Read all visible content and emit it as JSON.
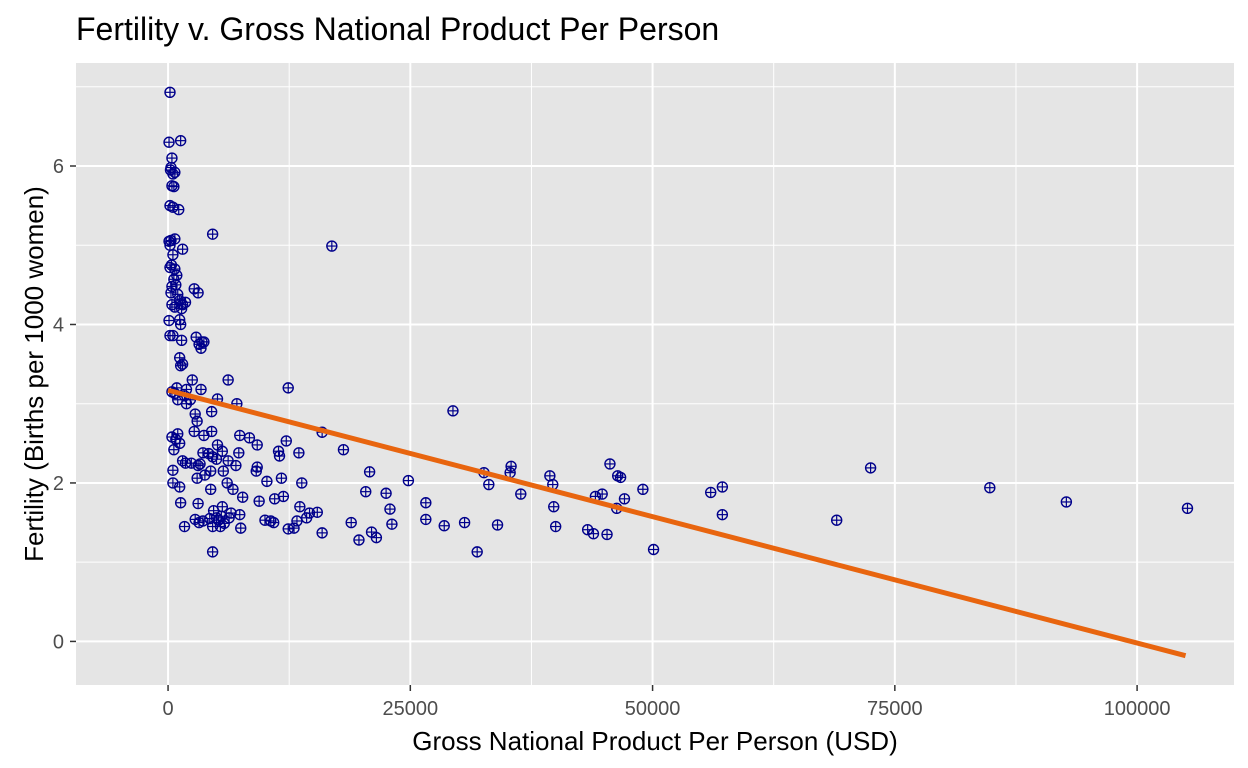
{
  "chart_data": {
    "type": "scatter",
    "title": "Fertility v. Gross National Product Per Person",
    "xlabel": "Gross National Product Per Person (USD)",
    "ylabel": "Fertility (Births per 1000 women)",
    "xlim": [
      -9500,
      110000
    ],
    "ylim": [
      -0.55,
      7.3
    ],
    "xticks": [
      0,
      25000,
      50000,
      75000,
      100000
    ],
    "xtick_labels": [
      "0",
      "25000",
      "50000",
      "75000",
      "100000"
    ],
    "yticks": [
      0,
      2,
      4,
      6
    ],
    "ytick_labels": [
      "0",
      "2",
      "4",
      "6"
    ],
    "grid": true,
    "legend": "none",
    "colors": {
      "panel": "#e5e5e5",
      "grid": "#ffffff",
      "points": "#00008b",
      "trend": "#e8650f"
    },
    "trend_line": {
      "x": [
        0,
        105000
      ],
      "y": [
        3.17,
        -0.18
      ]
    },
    "points": [
      [
        200,
        6.93
      ],
      [
        100,
        6.3
      ],
      [
        1300,
        6.32
      ],
      [
        400,
        6.1
      ],
      [
        300,
        5.98
      ],
      [
        250,
        5.95
      ],
      [
        500,
        5.9
      ],
      [
        700,
        5.92
      ],
      [
        400,
        5.75
      ],
      [
        600,
        5.74
      ],
      [
        200,
        5.5
      ],
      [
        500,
        5.48
      ],
      [
        1100,
        5.45
      ],
      [
        4600,
        5.14
      ],
      [
        300,
        5.06
      ],
      [
        100,
        5.05
      ],
      [
        700,
        5.08
      ],
      [
        200,
        5.0
      ],
      [
        1500,
        4.95
      ],
      [
        16900,
        4.99
      ],
      [
        500,
        4.88
      ],
      [
        350,
        4.75
      ],
      [
        200,
        4.72
      ],
      [
        700,
        4.7
      ],
      [
        900,
        4.62
      ],
      [
        600,
        4.57
      ],
      [
        400,
        4.48
      ],
      [
        800,
        4.5
      ],
      [
        300,
        4.4
      ],
      [
        1000,
        4.38
      ],
      [
        2700,
        4.45
      ],
      [
        3100,
        4.4
      ],
      [
        1200,
        4.3
      ],
      [
        1800,
        4.28
      ],
      [
        1500,
        4.25
      ],
      [
        1400,
        4.2
      ],
      [
        400,
        4.25
      ],
      [
        700,
        4.22
      ],
      [
        100,
        4.05
      ],
      [
        1200,
        4.06
      ],
      [
        1300,
        4.0
      ],
      [
        200,
        3.86
      ],
      [
        500,
        3.86
      ],
      [
        2900,
        3.84
      ],
      [
        3500,
        3.78
      ],
      [
        3200,
        3.75
      ],
      [
        3700,
        3.78
      ],
      [
        1400,
        3.8
      ],
      [
        3400,
        3.7
      ],
      [
        1200,
        3.58
      ],
      [
        1500,
        3.5
      ],
      [
        1300,
        3.48
      ],
      [
        2500,
        3.3
      ],
      [
        6200,
        3.3
      ],
      [
        12400,
        3.2
      ],
      [
        900,
        3.2
      ],
      [
        1900,
        3.18
      ],
      [
        3400,
        3.18
      ],
      [
        400,
        3.15
      ],
      [
        700,
        3.13
      ],
      [
        1000,
        3.05
      ],
      [
        1700,
        3.1
      ],
      [
        2300,
        3.05
      ],
      [
        5100,
        3.06
      ],
      [
        7100,
        3.0
      ],
      [
        1900,
        3.0
      ],
      [
        29400,
        2.91
      ],
      [
        4500,
        2.9
      ],
      [
        2800,
        2.87
      ],
      [
        3000,
        2.78
      ],
      [
        15900,
        2.64
      ],
      [
        2700,
        2.65
      ],
      [
        4500,
        2.65
      ],
      [
        400,
        2.58
      ],
      [
        1000,
        2.62
      ],
      [
        800,
        2.55
      ],
      [
        1200,
        2.5
      ],
      [
        3700,
        2.6
      ],
      [
        7400,
        2.6
      ],
      [
        8400,
        2.57
      ],
      [
        9200,
        2.48
      ],
      [
        12200,
        2.53
      ],
      [
        5100,
        2.48
      ],
      [
        18100,
        2.42
      ],
      [
        3600,
        2.38
      ],
      [
        600,
        2.42
      ],
      [
        4200,
        2.37
      ],
      [
        4600,
        2.33
      ],
      [
        5600,
        2.4
      ],
      [
        7300,
        2.38
      ],
      [
        11400,
        2.4
      ],
      [
        13500,
        2.38
      ],
      [
        11500,
        2.34
      ],
      [
        1500,
        2.28
      ],
      [
        1800,
        2.25
      ],
      [
        2400,
        2.25
      ],
      [
        3100,
        2.22
      ],
      [
        3300,
        2.24
      ],
      [
        5000,
        2.3
      ],
      [
        6200,
        2.28
      ],
      [
        7000,
        2.22
      ],
      [
        9200,
        2.2
      ],
      [
        4400,
        2.15
      ],
      [
        5700,
        2.15
      ],
      [
        500,
        2.16
      ],
      [
        9100,
        2.15
      ],
      [
        20800,
        2.14
      ],
      [
        32600,
        2.13
      ],
      [
        35400,
        2.21
      ],
      [
        35300,
        2.13
      ],
      [
        39400,
        2.09
      ],
      [
        45600,
        2.24
      ],
      [
        46400,
        2.09
      ],
      [
        46700,
        2.07
      ],
      [
        72500,
        2.19
      ],
      [
        3000,
        2.06
      ],
      [
        3800,
        2.1
      ],
      [
        6100,
        2.0
      ],
      [
        10200,
        2.02
      ],
      [
        11700,
        2.06
      ],
      [
        13800,
        2.0
      ],
      [
        24800,
        2.03
      ],
      [
        33100,
        1.98
      ],
      [
        39700,
        1.98
      ],
      [
        500,
        2.0
      ],
      [
        1200,
        1.95
      ],
      [
        4400,
        1.92
      ],
      [
        6700,
        1.92
      ],
      [
        20400,
        1.89
      ],
      [
        22500,
        1.87
      ],
      [
        36400,
        1.86
      ],
      [
        44800,
        1.86
      ],
      [
        44100,
        1.83
      ],
      [
        47100,
        1.8
      ],
      [
        49000,
        1.92
      ],
      [
        56000,
        1.88
      ],
      [
        57200,
        1.95
      ],
      [
        84800,
        1.94
      ],
      [
        7700,
        1.82
      ],
      [
        9400,
        1.77
      ],
      [
        11000,
        1.8
      ],
      [
        11900,
        1.83
      ],
      [
        1300,
        1.75
      ],
      [
        3100,
        1.74
      ],
      [
        26600,
        1.75
      ],
      [
        39800,
        1.7
      ],
      [
        46300,
        1.68
      ],
      [
        92700,
        1.76
      ],
      [
        105200,
        1.68
      ],
      [
        5600,
        1.7
      ],
      [
        6500,
        1.62
      ],
      [
        7400,
        1.6
      ],
      [
        4700,
        1.65
      ],
      [
        5000,
        1.56
      ],
      [
        5500,
        1.58
      ],
      [
        6300,
        1.56
      ],
      [
        13600,
        1.7
      ],
      [
        15400,
        1.63
      ],
      [
        14600,
        1.62
      ],
      [
        22900,
        1.67
      ],
      [
        57200,
        1.6
      ],
      [
        2800,
        1.54
      ],
      [
        3600,
        1.52
      ],
      [
        4300,
        1.55
      ],
      [
        5200,
        1.53
      ],
      [
        10000,
        1.53
      ],
      [
        10600,
        1.52
      ],
      [
        10900,
        1.5
      ],
      [
        13300,
        1.52
      ],
      [
        14300,
        1.56
      ],
      [
        18900,
        1.5
      ],
      [
        23100,
        1.48
      ],
      [
        26600,
        1.54
      ],
      [
        30600,
        1.5
      ],
      [
        69000,
        1.53
      ],
      [
        1700,
        1.45
      ],
      [
        3200,
        1.5
      ],
      [
        4600,
        1.45
      ],
      [
        5400,
        1.45
      ],
      [
        5800,
        1.49
      ],
      [
        7500,
        1.43
      ],
      [
        12400,
        1.42
      ],
      [
        13000,
        1.43
      ],
      [
        15900,
        1.37
      ],
      [
        21000,
        1.38
      ],
      [
        21500,
        1.31
      ],
      [
        28500,
        1.46
      ],
      [
        34000,
        1.47
      ],
      [
        40000,
        1.45
      ],
      [
        43300,
        1.41
      ],
      [
        43900,
        1.36
      ],
      [
        45300,
        1.35
      ],
      [
        19700,
        1.28
      ],
      [
        31900,
        1.13
      ],
      [
        50100,
        1.16
      ],
      [
        4600,
        1.13
      ]
    ]
  }
}
